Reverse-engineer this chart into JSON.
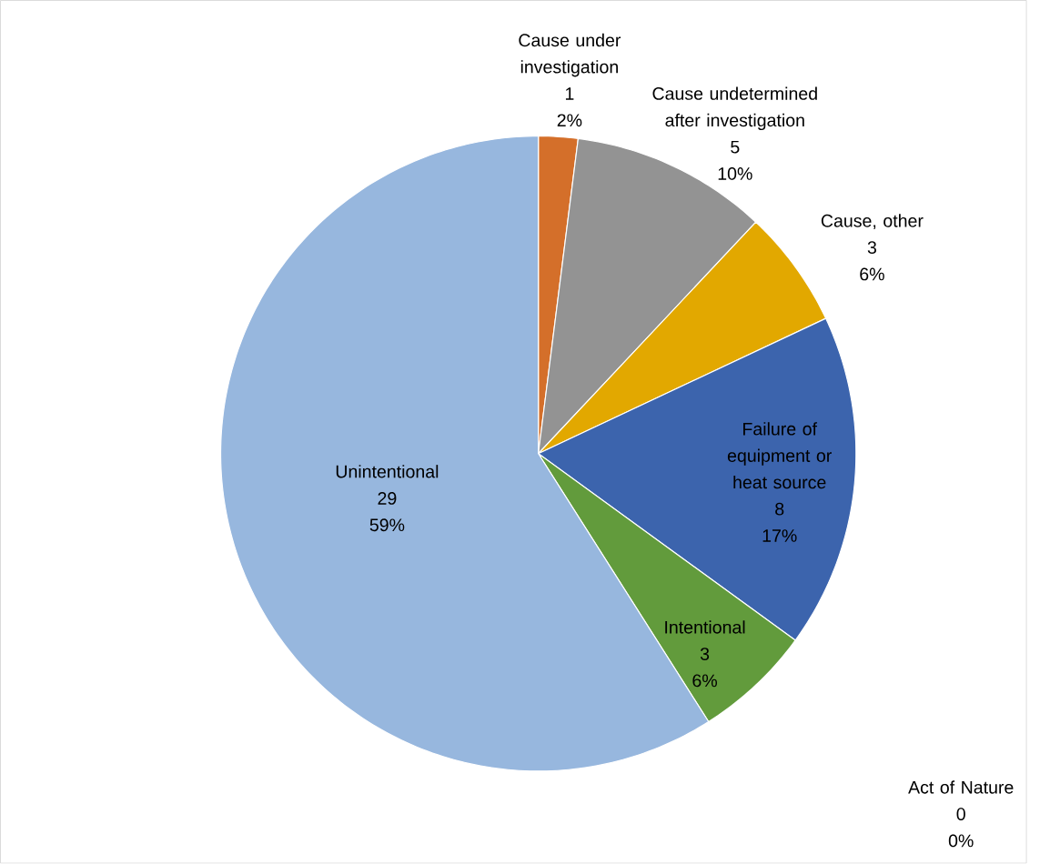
{
  "chart_data": {
    "type": "pie",
    "categories": [
      "Cause under investigation",
      "Cause undetermined after investigation",
      "Cause, other",
      "Failure of equipment or heat source",
      "Intentional",
      "Unintentional",
      "Act of Nature"
    ],
    "values": [
      2,
      10,
      6,
      17,
      6,
      59,
      0
    ],
    "annotations": [
      "1",
      "5",
      "3",
      "8",
      "3",
      "29",
      "0"
    ],
    "value_labels": [
      "2%",
      "10%",
      "6%",
      "17%",
      "6%",
      "59%",
      "0%"
    ],
    "colors": [
      "#d46f2a",
      "#939393",
      "#e2a800",
      "#3c64ad",
      "#629b3c",
      "#97b7de",
      "#4f81bd"
    ],
    "legend": false
  }
}
